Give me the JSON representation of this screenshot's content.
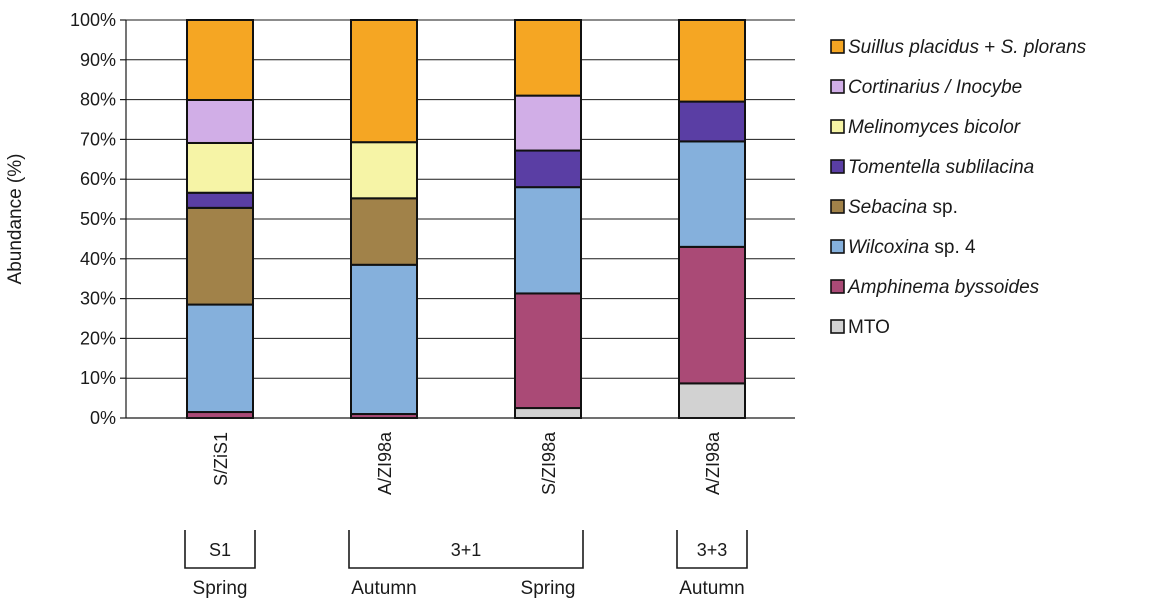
{
  "chart_data": {
    "type": "bar",
    "stacked": true,
    "ylabel": "Abundance (%)",
    "ylim": [
      0,
      100
    ],
    "ytick_step": 10,
    "grid": true,
    "legend_position": "right",
    "categories": [
      "S/ZiS1",
      "A/ZI98a",
      "S/ZI98a",
      "A/ZI98a"
    ],
    "groups": [
      {
        "label": "S1",
        "span": [
          0,
          0
        ]
      },
      {
        "label": "3+1",
        "span": [
          1,
          2
        ]
      },
      {
        "label": "3+3",
        "span": [
          3,
          3
        ]
      }
    ],
    "seasons": [
      "Spring",
      "Autumn",
      "Spring",
      "Autumn"
    ],
    "series": [
      {
        "name": "MTO",
        "color": "#d2d2d2",
        "values": [
          0,
          0,
          2.5,
          8.7
        ]
      },
      {
        "name": "Amphinema byssoides",
        "color": "#aa4a76",
        "values": [
          1.5,
          1.0,
          28.8,
          34.3
        ]
      },
      {
        "name": "Wilcoxina sp. 4",
        "color": "#85b0dc",
        "values": [
          27.0,
          37.5,
          26.7,
          26.5
        ]
      },
      {
        "name": "Sebacina sp.",
        "color": "#a18249",
        "values": [
          24.3,
          16.7,
          0,
          0
        ]
      },
      {
        "name": "Tomentella sublilacina",
        "color": "#5a3ea4",
        "values": [
          3.8,
          0,
          9.2,
          10.0
        ]
      },
      {
        "name": "Melinomyces bicolor",
        "color": "#f6f4a6",
        "values": [
          12.5,
          14.1,
          0,
          0
        ]
      },
      {
        "name": "Cortinarius / Inocybe",
        "color": "#d1aee7",
        "values": [
          10.8,
          0,
          13.8,
          0
        ]
      },
      {
        "name": "Suillus placidus + S. plorans",
        "color": "#f5a623",
        "values": [
          20.1,
          30.7,
          19.0,
          20.5
        ]
      }
    ],
    "legend": [
      {
        "parts": [
          {
            "t": "Suillus placidus",
            "i": true
          },
          {
            "t": " + ",
            "i": false
          },
          {
            "t": "S. plorans",
            "i": true
          }
        ],
        "color": "#f5a623"
      },
      {
        "parts": [
          {
            "t": "Cortinarius / Inocybe",
            "i": true
          }
        ],
        "color": "#d1aee7"
      },
      {
        "parts": [
          {
            "t": "Melinomyces bicolor",
            "i": true
          }
        ],
        "color": "#f6f4a6"
      },
      {
        "parts": [
          {
            "t": "Tomentella sublilacina",
            "i": true
          }
        ],
        "color": "#5a3ea4"
      },
      {
        "parts": [
          {
            "t": "Sebacina",
            "i": true
          },
          {
            "t": " sp.",
            "i": false
          }
        ],
        "color": "#a18249"
      },
      {
        "parts": [
          {
            "t": "Wilcoxina",
            "i": true
          },
          {
            "t": " sp. 4",
            "i": false
          }
        ],
        "color": "#85b0dc"
      },
      {
        "parts": [
          {
            "t": "Amphinema byssoides",
            "i": true
          }
        ],
        "color": "#aa4a76"
      },
      {
        "parts": [
          {
            "t": "MTO",
            "i": false
          }
        ],
        "color": "#d2d2d2"
      }
    ]
  }
}
